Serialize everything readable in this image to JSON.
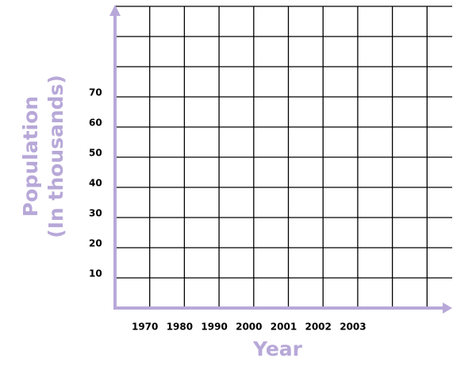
{
  "chart_data": {
    "type": "line",
    "xlabel": "Year",
    "ylabel": [
      "Population",
      "(In thousands)"
    ],
    "categories": [
      "1970",
      "1980",
      "1990",
      "2000",
      "2001",
      "2002",
      "2003"
    ],
    "ylim": [
      0,
      100
    ],
    "yticks": [
      10,
      20,
      30,
      40,
      50,
      60,
      70
    ],
    "grid": true,
    "axis_color": "#b7a8d8"
  }
}
